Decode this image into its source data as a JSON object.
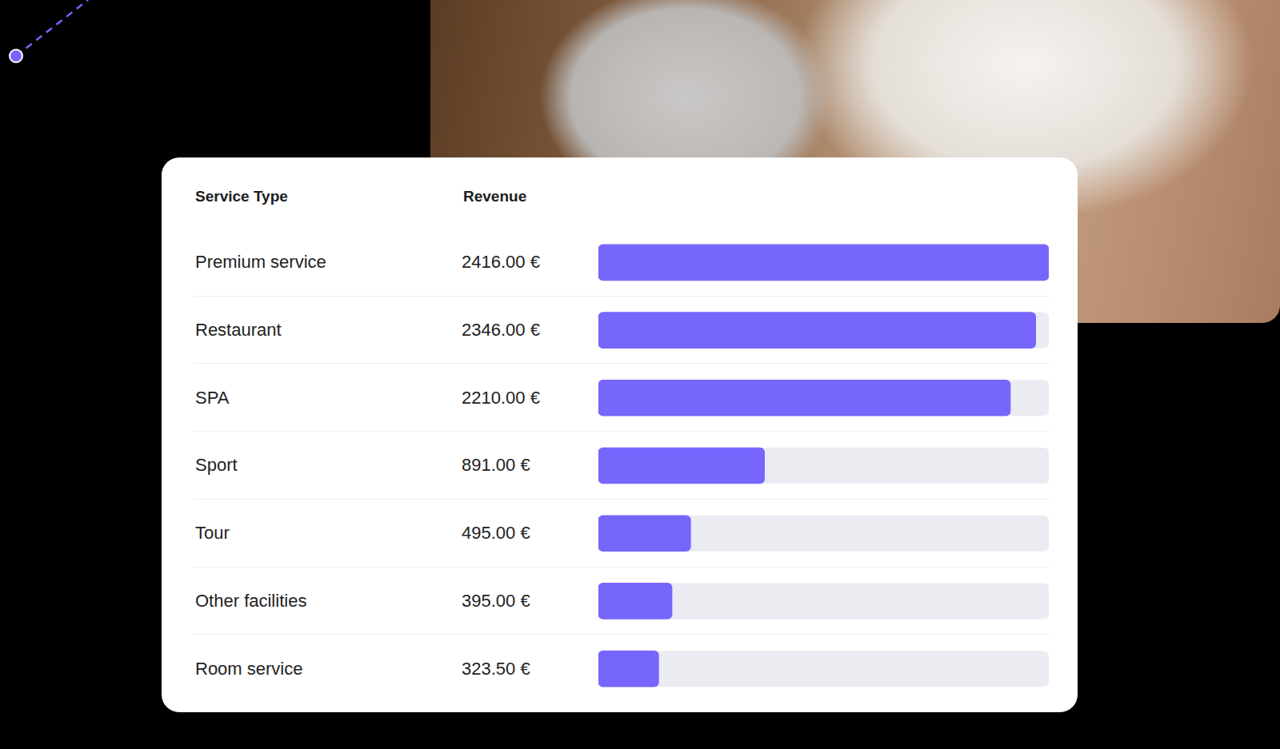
{
  "chart_data": {
    "type": "bar",
    "orientation": "horizontal",
    "y_label": "Service Type",
    "x_label": "Revenue",
    "categories": [
      "Premium service",
      "Restaurant",
      "SPA",
      "Sport",
      "Tour",
      "Other facilities",
      "Room service"
    ],
    "values": [
      2416.0,
      2346.0,
      2210.0,
      891.0,
      495.0,
      395.0,
      323.5
    ],
    "value_labels": [
      "2416.00 €",
      "2346.00 €",
      "2210.00 €",
      "891.00 €",
      "495.00 €",
      "395.00 €",
      "323.50 €"
    ],
    "data_labels": true,
    "color": "#7766fb",
    "xlim": [
      0,
      2416
    ],
    "grid": false,
    "tick_labels": false
  }
}
